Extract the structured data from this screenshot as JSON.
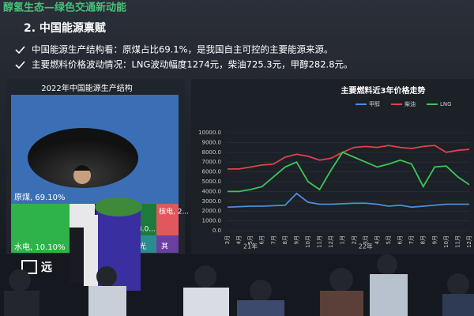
{
  "slide": {
    "header": "醇氢生态—绿色交通新动能",
    "section": "2. 中国能源禀赋",
    "bullets": [
      "中国能源生产结构看：原煤占比69.1%，是我国自主可控的主要能源来源。",
      "主要燃料价格波动情况：LNG波动幅度1274元，柴油725.3元，甲醇282.8元。"
    ]
  },
  "treemap": {
    "title": "2022年中国能源生产结构",
    "cells": [
      "原煤, 69.10%",
      "水电, 10.10%",
      "核电, 2...",
      "3.0...",
      "光",
      "其"
    ]
  },
  "logo": "远",
  "chart_data": {
    "type": "line",
    "title": "主要燃料近3年价格走势",
    "categories": [
      "3月",
      "4月",
      "5月",
      "6月",
      "7月",
      "8月",
      "9月",
      "10月",
      "11月",
      "12月",
      "1月",
      "2月",
      "3月",
      "4月",
      "5月",
      "6月",
      "7月",
      "8月",
      "9月",
      "10月",
      "11月",
      "12月"
    ],
    "x_groups": [
      "21年",
      "22年"
    ],
    "series": [
      {
        "name": "甲醇",
        "color": "#4a8fe0",
        "values": [
          2400,
          2450,
          2500,
          2500,
          2550,
          2600,
          3800,
          2900,
          2700,
          2700,
          2750,
          2800,
          2800,
          2700,
          2500,
          2600,
          2400,
          2500,
          2600,
          2700,
          2700,
          2700
        ]
      },
      {
        "name": "柴油",
        "color": "#e0424a",
        "values": [
          6300,
          6300,
          6500,
          6700,
          6800,
          7500,
          7800,
          7600,
          7200,
          7400,
          8000,
          8500,
          8600,
          8500,
          8700,
          8500,
          8400,
          8600,
          8700,
          8000,
          8200,
          8300
        ]
      },
      {
        "name": "LNG",
        "color": "#3fc45a",
        "values": [
          4000,
          4000,
          4200,
          4500,
          5500,
          6500,
          7000,
          5000,
          4200,
          6200,
          8000,
          7500,
          7000,
          6500,
          6800,
          7200,
          6800,
          4500,
          6500,
          6600,
          5500,
          4700
        ]
      }
    ],
    "ylim": [
      0,
      10000
    ],
    "yticks": [
      {
        "value": 0,
        "label": "0.0"
      },
      {
        "value": 1000,
        "label": "1000.0"
      },
      {
        "value": 2000,
        "label": "2000.0"
      },
      {
        "value": 3000,
        "label": "3000.0"
      },
      {
        "value": 4000,
        "label": "4000.0"
      },
      {
        "value": 5000,
        "label": "5000.0"
      },
      {
        "value": 6000,
        "label": "6000.0"
      },
      {
        "value": 7000,
        "label": "7000.0"
      },
      {
        "value": 8000,
        "label": "8000.0"
      },
      {
        "value": 9000,
        "label": "9000.0"
      },
      {
        "value": 10000,
        "label": "10000.0"
      }
    ]
  }
}
